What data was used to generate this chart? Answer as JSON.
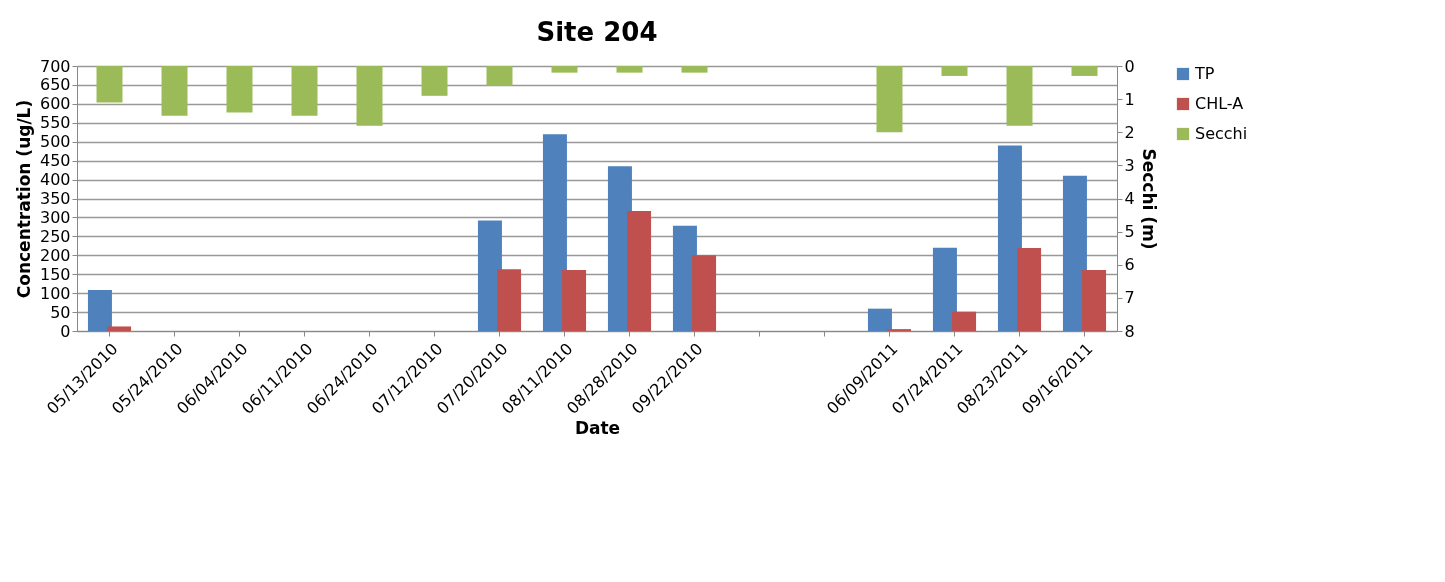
{
  "chart_data": {
    "type": "bar",
    "title": "Site 204",
    "xlabel": "Date",
    "ylabel": "Concentration (ug/L)",
    "y2label": "Secchi (m)",
    "categories": [
      "05/13/2010",
      "05/24/2010",
      "06/04/2010",
      "06/11/2010",
      "06/24/2010",
      "07/12/2010",
      "07/20/2010",
      "08/11/2010",
      "08/28/2010",
      "09/22/2010",
      null,
      null,
      "06/09/2011",
      "07/24/2011",
      "08/23/2011",
      "09/16/2011"
    ],
    "series": [
      {
        "name": "TP",
        "color": "#4f81bd",
        "values": [
          108,
          null,
          null,
          null,
          null,
          null,
          292,
          520,
          435,
          278,
          null,
          null,
          59,
          220,
          490,
          410
        ]
      },
      {
        "name": "CHL-A",
        "color": "#c0504d",
        "values": [
          12,
          null,
          null,
          null,
          null,
          null,
          163,
          161,
          317,
          200,
          null,
          null,
          5,
          51,
          219,
          161
        ]
      },
      {
        "name": "Secchi",
        "color": "#9bbb59",
        "axis": "y2",
        "values": [
          1.1,
          1.5,
          1.4,
          1.5,
          1.8,
          0.9,
          0.6,
          0.2,
          0.2,
          0.2,
          null,
          null,
          2.0,
          0.3,
          1.8,
          0.3
        ]
      }
    ],
    "ylim": [
      0,
      700
    ],
    "yticks": [
      0,
      50,
      100,
      150,
      200,
      250,
      300,
      350,
      400,
      450,
      500,
      550,
      600,
      650,
      700
    ],
    "y2lim": [
      8,
      0
    ],
    "y2ticks": [
      0,
      1,
      2,
      3,
      4,
      5,
      6,
      7,
      8
    ],
    "grid": "y",
    "legend": "right"
  }
}
